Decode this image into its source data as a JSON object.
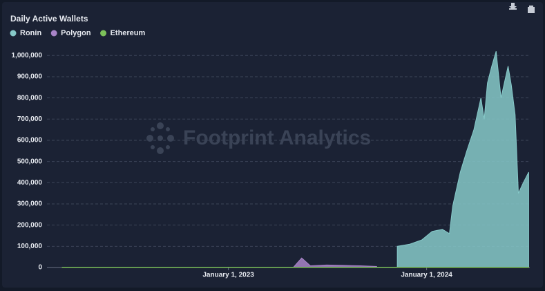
{
  "chart_data": {
    "type": "area",
    "title": "Daily Active Wallets",
    "watermark": "Footprint Analytics",
    "x": [
      "2022-03-01",
      "2022-05-01",
      "2022-07-01",
      "2022-09-01",
      "2022-11-01",
      "2023-01-01",
      "2023-03-01",
      "2023-05-01",
      "2023-05-16",
      "2023-06-01",
      "2023-07-01",
      "2023-08-01",
      "2023-09-01",
      "2023-10-01",
      "2023-11-08",
      "2023-12-01",
      "2023-12-23",
      "2024-01-11",
      "2024-01-30",
      "2024-02-12",
      "2024-02-18",
      "2024-03-03",
      "2024-03-15",
      "2024-03-28",
      "2024-04-10",
      "2024-04-16",
      "2024-04-22",
      "2024-04-30",
      "2024-05-08",
      "2024-05-17",
      "2024-05-30",
      "2024-06-05",
      "2024-06-12",
      "2024-06-18",
      "2024-06-27",
      "2024-07-07"
    ],
    "series": [
      {
        "name": "Ronin",
        "color": "#86c9c9",
        "values": [
          null,
          null,
          null,
          null,
          null,
          null,
          null,
          null,
          null,
          null,
          null,
          null,
          null,
          null,
          100000,
          110000,
          130000,
          170000,
          180000,
          160000,
          290000,
          450000,
          550000,
          650000,
          800000,
          700000,
          870000,
          950000,
          1020000,
          800000,
          950000,
          860000,
          720000,
          350000,
          400000,
          450000
        ]
      },
      {
        "name": "Polygon",
        "color": "#a884c8",
        "values": [
          null,
          null,
          null,
          null,
          null,
          null,
          null,
          2000,
          45000,
          8000,
          12000,
          10000,
          8000,
          5000,
          null,
          null,
          null,
          null,
          null,
          null,
          null,
          null,
          null,
          null,
          null,
          null,
          null,
          null,
          null,
          null,
          null,
          null,
          null,
          null,
          null,
          null
        ]
      },
      {
        "name": "Ethereum",
        "color": "#7cc15a",
        "values": [
          1500,
          1500,
          1500,
          1500,
          1500,
          1500,
          1500,
          1500,
          1500,
          1500,
          1500,
          1500,
          1500,
          1500,
          1500,
          1500,
          1500,
          1500,
          1500,
          1500,
          1500,
          1500,
          1500,
          1500,
          1500,
          1500,
          1500,
          1500,
          1500,
          1500,
          1500,
          1500,
          1500,
          1500,
          1500,
          1500
        ]
      }
    ],
    "xlim": [
      "2022-02-01",
      "2024-07-09"
    ],
    "xticks": [
      {
        "value": "2023-01-01",
        "label": "January 1, 2023"
      },
      {
        "value": "2024-01-01",
        "label": "January 1, 2024"
      }
    ],
    "ylim": [
      0,
      1040000
    ],
    "yticks": [
      0,
      {
        "value": 100000,
        "label": "100,000"
      },
      {
        "value": 200000,
        "label": "200,000"
      },
      {
        "value": 300000,
        "label": "300,000"
      },
      {
        "value": 400000,
        "label": "400,000"
      },
      {
        "value": 500000,
        "label": "500,000"
      },
      {
        "value": 600000,
        "label": "600,000"
      },
      {
        "value": 700000,
        "label": "700,000"
      },
      {
        "value": 800000,
        "label": "800,000"
      },
      {
        "value": 900000,
        "label": "900,000"
      },
      {
        "value": 1000000,
        "label": "1,000,000"
      }
    ],
    "grid": true
  }
}
